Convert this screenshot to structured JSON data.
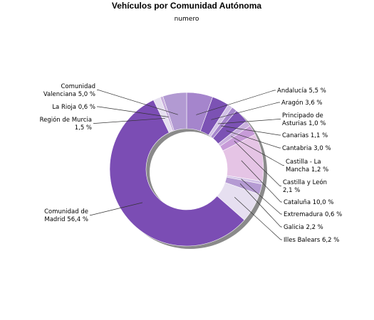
{
  "chart_data": {
    "type": "pie",
    "style": "donut",
    "title": "Vehículos por Comunidad Autónoma",
    "subtitle": "numero",
    "unit": "%",
    "slices": [
      {
        "name": "Andalucía",
        "label": [
          "Andalucía 5,5 %"
        ],
        "value": 5.5,
        "color": "#a585cc"
      },
      {
        "name": "Aragón",
        "label": [
          "Aragón 3,6 %"
        ],
        "value": 3.6,
        "color": "#7c52b4"
      },
      {
        "name": "Principado de Asturias",
        "label": [
          "Principado de",
          "Asturias 1,0 %"
        ],
        "value": 1.0,
        "color": "#d2c2e6"
      },
      {
        "name": "Canarias",
        "label": [
          "Canarias 1,1 %"
        ],
        "value": 1.1,
        "color": "#a585cc"
      },
      {
        "name": "Cantabria",
        "label": [
          "Cantabria 3,0 %"
        ],
        "value": 3.0,
        "color": "#7c52b4"
      },
      {
        "name": "Castilla - La Mancha",
        "label": [
          "Castilla - La",
          "Mancha 1,2 %"
        ],
        "value": 1.2,
        "color": "#c9b0dd"
      },
      {
        "name": "Castilla y León",
        "label": [
          "Castilla y León",
          "2,1 %"
        ],
        "value": 2.1,
        "color": "#c79bd8"
      },
      {
        "name": "Cataluña",
        "label": [
          "Cataluña 10,0 %"
        ],
        "value": 10.0,
        "color": "#e5c4e5"
      },
      {
        "name": "Extremadura",
        "label": [
          "Extremadura 0,6 %"
        ],
        "value": 0.6,
        "color": "#d2c2e6"
      },
      {
        "name": "Galicia",
        "label": [
          "Galicia 2,2 %"
        ],
        "value": 2.2,
        "color": "#b59bd3"
      },
      {
        "name": "Illes Balears",
        "label": [
          "Illes Balears 6,2 %"
        ],
        "value": 6.2,
        "color": "#e6dff0"
      },
      {
        "name": "Comunidad de Madrid",
        "label": [
          "Comunidad de",
          "Madrid 56,4 %"
        ],
        "value": 56.4,
        "color": "#7b4db4"
      },
      {
        "name": "Región de Murcia",
        "label": [
          "Región de Murcia",
          "1,5 %"
        ],
        "value": 1.5,
        "color": "#e6dff0"
      },
      {
        "name": "La Rioja",
        "label": [
          "La Rioja 0,6 %"
        ],
        "value": 0.6,
        "color": "#c9b0dd"
      },
      {
        "name": "Comunidad Valenciana",
        "label": [
          "Comunidad",
          "Valenciana 5,0 %"
        ],
        "value": 5.0,
        "color": "#b29ad2"
      }
    ]
  }
}
